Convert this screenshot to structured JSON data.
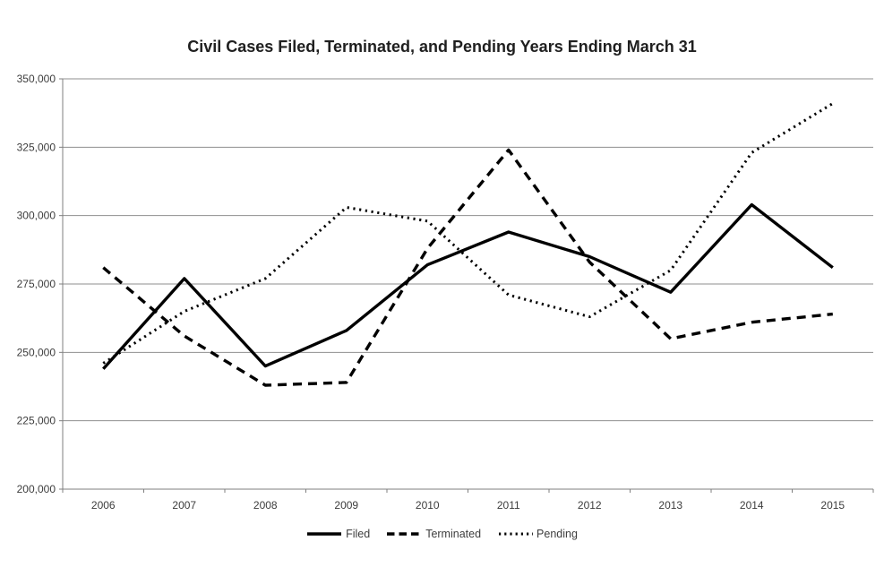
{
  "title": "Civil Cases Filed, Terminated, and Pending Years Ending March 31",
  "chart_data": {
    "type": "line",
    "categories": [
      "2006",
      "2007",
      "2008",
      "2009",
      "2010",
      "2011",
      "2012",
      "2013",
      "2014",
      "2015"
    ],
    "series": [
      {
        "name": "Filed",
        "style": "solid",
        "values": [
          244000,
          277000,
          245000,
          258000,
          282000,
          294000,
          285000,
          272000,
          304000,
          281000
        ]
      },
      {
        "name": "Terminated",
        "style": "dashed",
        "values": [
          281000,
          256000,
          238000,
          239000,
          288000,
          324000,
          283000,
          255000,
          261000,
          264000
        ]
      },
      {
        "name": "Pending",
        "style": "dotted",
        "values": [
          246000,
          265000,
          277000,
          303000,
          298000,
          271000,
          263000,
          280000,
          323000,
          341000
        ]
      }
    ],
    "title": "Civil Cases Filed, Terminated, and Pending Years Ending March 31",
    "xlabel": "",
    "ylabel": "",
    "ylim": [
      200000,
      350000
    ],
    "ytick_step": 25000,
    "ytick_labels": [
      "200,000",
      "225,000",
      "250,000",
      "275,000",
      "300,000",
      "325,000",
      "350,000"
    ],
    "grid": "horizontal",
    "legend_position": "bottom",
    "legend_entries": [
      "Filed",
      "Terminated",
      "Pending"
    ]
  },
  "colors": {
    "series_line": "#000000",
    "gridline": "#8f8f8f",
    "axis": "#7f7f7f",
    "tick_text": "#3d3d3d",
    "title_text": "#1f1f1f",
    "background": "#ffffff"
  }
}
